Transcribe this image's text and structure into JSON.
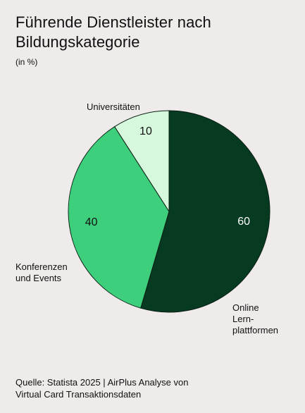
{
  "title": "Führende Dienstleister nach Bildungskategorie",
  "subtitle": "(in %)",
  "source": "Quelle: Statista 2025 | AirPlus Analyse von\nVirtual Card Transaktionsdaten",
  "chart_data": {
    "type": "pie",
    "title": "Führende Dienstleister nach Bildungskategorie",
    "unit": "(in %)",
    "slices": [
      {
        "label": "Online\nLern-\nplattformen",
        "value": 60,
        "color": "#063a21",
        "value_color": "#ffffff"
      },
      {
        "label": "Konferenzen\nund Events",
        "value": 40,
        "color": "#3ecf7d",
        "value_color": "#111111"
      },
      {
        "label": "Universitäten",
        "value": 10,
        "color": "#d6f8dd",
        "value_color": "#111111"
      }
    ],
    "start_angle_deg": 0,
    "direction": "clockwise",
    "legend": "none"
  }
}
